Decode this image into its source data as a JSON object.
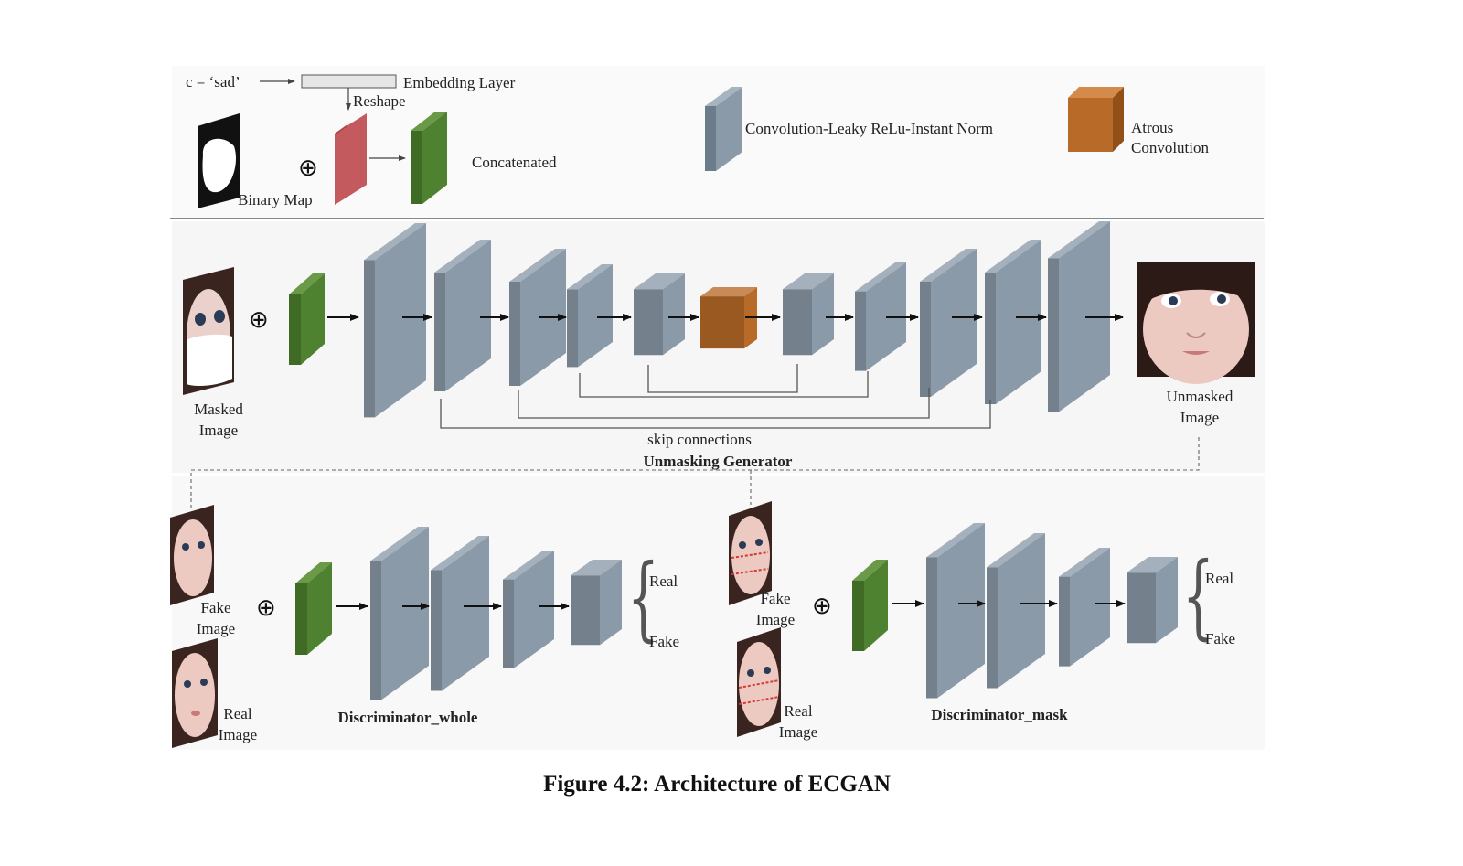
{
  "legend": {
    "condition_text": "c =  ‘sad’",
    "embedding_label": "Embedding Layer",
    "reshape_label": "Reshape",
    "binary_map_label": "Binary Map",
    "concatenated_label": "Concatenated",
    "conv_block_label": "Convolution-Leaky ReLu-Instant Norm",
    "atrous_label_line1": "Atrous",
    "atrous_label_line2": "Convolution"
  },
  "generator": {
    "input_label_line1": "Masked",
    "input_label_line2": "Image",
    "output_label_line1": "Unmasked",
    "output_label_line2": "Image",
    "skip_label": "skip connections",
    "title": "Unmasking Generator"
  },
  "discriminator_whole": {
    "title": "Discriminator_whole",
    "fake_label_line1": "Fake",
    "fake_label_line2": "Image",
    "real_label_line1": "Real",
    "real_label_line2": "Image",
    "output_real": "Real",
    "output_fake": "Fake"
  },
  "discriminator_mask": {
    "title": "Discriminator_mask",
    "fake_label_line1": "Fake",
    "fake_label_line2": "Image",
    "real_label_line1": "Real",
    "real_label_line2": "Image",
    "output_real": "Real",
    "output_fake": "Fake"
  },
  "caption": "Figure 4.2: Architecture of ECGAN",
  "colors": {
    "conv_block": "#8a9aa8",
    "atrous_block": "#b86a28",
    "concat_block": "#4a7a2c",
    "embedding_block": "#c25a5e",
    "panel_background": "#f8f8f8",
    "face_skin": "#e9c4bd",
    "hair": "#3a2420"
  }
}
